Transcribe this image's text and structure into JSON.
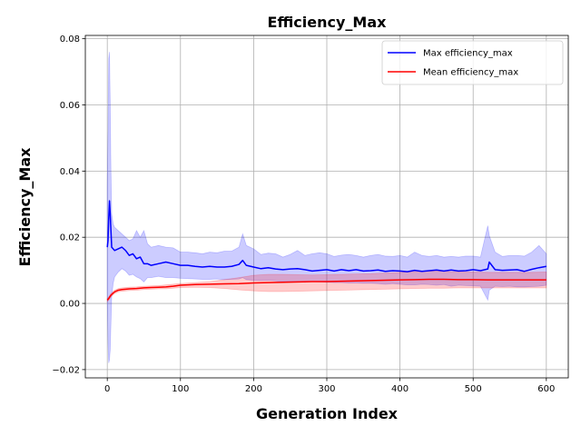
{
  "chart_data": {
    "type": "line",
    "title": "Efficiency_Max",
    "xlabel": "Generation Index",
    "ylabel": "Efficiency_Max",
    "xlim": [
      -30,
      630
    ],
    "ylim": [
      -0.0225,
      0.081
    ],
    "xticks": [
      0,
      100,
      200,
      300,
      400,
      500,
      600
    ],
    "yticks": [
      -0.02,
      0.0,
      0.02,
      0.04,
      0.06,
      0.08
    ],
    "ytick_labels": [
      "−0.02",
      "0.00",
      "0.02",
      "0.04",
      "0.06",
      "0.08"
    ],
    "grid": true,
    "legend_position": "top-right",
    "series": [
      {
        "name": "Max efficiency_max",
        "color": "#0000ff",
        "band_color": "#0000ff",
        "x": [
          0,
          1,
          2,
          3,
          4,
          5,
          6,
          8,
          10,
          15,
          20,
          25,
          30,
          35,
          40,
          45,
          50,
          55,
          60,
          70,
          80,
          90,
          100,
          110,
          120,
          130,
          140,
          150,
          160,
          170,
          180,
          185,
          190,
          200,
          210,
          220,
          230,
          240,
          250,
          260,
          270,
          280,
          290,
          300,
          310,
          320,
          330,
          340,
          350,
          360,
          370,
          380,
          390,
          400,
          410,
          420,
          430,
          440,
          450,
          460,
          470,
          480,
          490,
          500,
          510,
          520,
          522,
          530,
          540,
          550,
          560,
          570,
          580,
          590,
          600
        ],
        "y": [
          0.017,
          0.019,
          0.026,
          0.031,
          0.027,
          0.022,
          0.017,
          0.0165,
          0.016,
          0.0165,
          0.017,
          0.016,
          0.0145,
          0.015,
          0.0135,
          0.014,
          0.012,
          0.012,
          0.0115,
          0.012,
          0.0125,
          0.012,
          0.0115,
          0.0115,
          0.0112,
          0.011,
          0.0112,
          0.011,
          0.011,
          0.0112,
          0.0118,
          0.013,
          0.0115,
          0.011,
          0.0105,
          0.0108,
          0.0104,
          0.0102,
          0.0104,
          0.0105,
          0.0102,
          0.0098,
          0.01,
          0.0102,
          0.0098,
          0.0102,
          0.0099,
          0.0102,
          0.0098,
          0.0099,
          0.0101,
          0.0097,
          0.0099,
          0.0098,
          0.0096,
          0.01,
          0.0097,
          0.0099,
          0.0101,
          0.0098,
          0.0101,
          0.0098,
          0.0099,
          0.0102,
          0.0099,
          0.0104,
          0.0125,
          0.0102,
          0.01,
          0.0101,
          0.0102,
          0.0097,
          0.0103,
          0.0108,
          0.0112
        ],
        "y_upper": [
          0.035,
          0.052,
          0.074,
          0.076,
          0.06,
          0.04,
          0.027,
          0.024,
          0.023,
          0.022,
          0.021,
          0.02,
          0.019,
          0.0195,
          0.022,
          0.02,
          0.022,
          0.018,
          0.017,
          0.0175,
          0.017,
          0.0168,
          0.0155,
          0.0155,
          0.0153,
          0.015,
          0.0155,
          0.0153,
          0.0158,
          0.0158,
          0.017,
          0.021,
          0.0175,
          0.0165,
          0.0148,
          0.0152,
          0.015,
          0.014,
          0.0148,
          0.016,
          0.0145,
          0.015,
          0.0153,
          0.015,
          0.0142,
          0.0146,
          0.0148,
          0.0145,
          0.014,
          0.0145,
          0.0148,
          0.0143,
          0.0142,
          0.0145,
          0.014,
          0.0155,
          0.0145,
          0.0142,
          0.0145,
          0.014,
          0.0142,
          0.014,
          0.0143,
          0.0143,
          0.014,
          0.0235,
          0.0205,
          0.0155,
          0.0142,
          0.0145,
          0.0145,
          0.0143,
          0.0155,
          0.0175,
          0.015
        ],
        "y_lower": [
          0.002,
          -0.012,
          -0.018,
          -0.017,
          -0.014,
          -0.006,
          0.002,
          0.006,
          0.008,
          0.0095,
          0.0105,
          0.0098,
          0.0085,
          0.0088,
          0.008,
          0.0075,
          0.0065,
          0.0078,
          0.0078,
          0.0082,
          0.0078,
          0.0078,
          0.0076,
          0.0075,
          0.0074,
          0.0073,
          0.0073,
          0.0074,
          0.0072,
          0.0073,
          0.0074,
          0.0078,
          0.0072,
          0.007,
          0.0069,
          0.007,
          0.0068,
          0.0066,
          0.0066,
          0.0066,
          0.0064,
          0.0066,
          0.0065,
          0.0064,
          0.0063,
          0.0063,
          0.0062,
          0.0062,
          0.0061,
          0.0061,
          0.006,
          0.0058,
          0.006,
          0.0058,
          0.0056,
          0.0056,
          0.0058,
          0.0057,
          0.0055,
          0.0057,
          0.0052,
          0.0055,
          0.0054,
          0.0053,
          0.0052,
          0.001,
          0.004,
          0.0052,
          0.0051,
          0.0052,
          0.005,
          0.005,
          0.0051,
          0.0052,
          0.0055
        ]
      },
      {
        "name": "Mean efficiency_max",
        "color": "#ff0000",
        "band_color": "#ff0000",
        "x": [
          0,
          2,
          5,
          10,
          15,
          20,
          30,
          40,
          50,
          60,
          70,
          80,
          90,
          100,
          120,
          140,
          160,
          180,
          200,
          220,
          240,
          260,
          280,
          300,
          320,
          340,
          360,
          380,
          400,
          420,
          440,
          460,
          480,
          500,
          520,
          540,
          560,
          580,
          600
        ],
        "y": [
          0.001,
          0.0015,
          0.0025,
          0.0035,
          0.004,
          0.0042,
          0.0044,
          0.0045,
          0.0047,
          0.0048,
          0.0049,
          0.005,
          0.0052,
          0.0055,
          0.0057,
          0.0058,
          0.0059,
          0.006,
          0.0062,
          0.0063,
          0.0064,
          0.0065,
          0.0066,
          0.0066,
          0.0067,
          0.0068,
          0.0069,
          0.007,
          0.0071,
          0.0072,
          0.0073,
          0.0073,
          0.0072,
          0.0072,
          0.0071,
          0.0071,
          0.0071,
          0.0071,
          0.0071
        ],
        "y_upper": [
          0.0015,
          0.002,
          0.003,
          0.004,
          0.0045,
          0.0047,
          0.0049,
          0.005,
          0.0052,
          0.0053,
          0.0054,
          0.0056,
          0.0058,
          0.006,
          0.0063,
          0.0066,
          0.0072,
          0.0078,
          0.0085,
          0.0088,
          0.0088,
          0.0087,
          0.0086,
          0.0087,
          0.0088,
          0.0089,
          0.009,
          0.0092,
          0.0094,
          0.0096,
          0.0098,
          0.0097,
          0.0095,
          0.0095,
          0.0094,
          0.0094,
          0.0094,
          0.0094,
          0.0095
        ],
        "y_lower": [
          0.0005,
          0.001,
          0.002,
          0.003,
          0.0035,
          0.0037,
          0.0039,
          0.004,
          0.0042,
          0.0043,
          0.0044,
          0.0044,
          0.0046,
          0.0048,
          0.0049,
          0.0048,
          0.0045,
          0.0041,
          0.0038,
          0.0036,
          0.0036,
          0.0037,
          0.0038,
          0.0039,
          0.004,
          0.0041,
          0.0042,
          0.0043,
          0.0044,
          0.0045,
          0.0046,
          0.0046,
          0.0047,
          0.0047,
          0.0047,
          0.0047,
          0.0047,
          0.0047,
          0.0047
        ]
      }
    ]
  }
}
